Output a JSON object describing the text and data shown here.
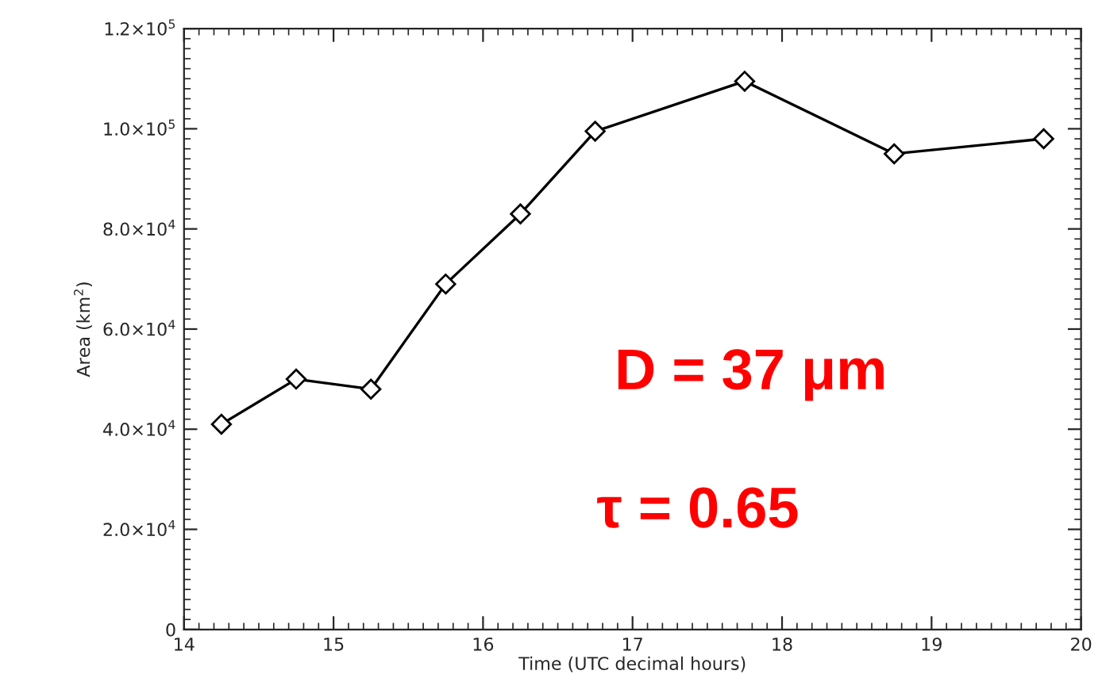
{
  "chart_data": {
    "type": "line",
    "xlabel": "Time (UTC decimal hours)",
    "ylabel": "Area (km$^{2}$)",
    "x": [
      14.25,
      14.75,
      15.25,
      15.75,
      16.25,
      16.75,
      17.75,
      18.75,
      19.75
    ],
    "series": [
      {
        "color": "#000000",
        "values": [
          41000,
          50000,
          48000,
          69000,
          83000,
          99500,
          109500,
          95000,
          98000
        ]
      }
    ],
    "marker": "diamond",
    "line_style": "solid",
    "grid": false,
    "legend": false,
    "xlim": [
      14,
      20
    ],
    "xticks": [
      14,
      15,
      16,
      17,
      18,
      19,
      20
    ],
    "ylim": [
      0,
      120000
    ],
    "yticks": [
      0,
      {
        "value": 20000,
        "label": "2.0×10$^{4}$"
      },
      {
        "value": 40000,
        "label": "4.0×10$^{4}$"
      },
      {
        "value": 60000,
        "label": "6.0×10$^{4}$"
      },
      {
        "value": 80000,
        "label": "8.0×10$^{4}$"
      },
      {
        "value": 100000,
        "label": "1.0×10$^{5}$"
      },
      {
        "value": 120000,
        "label": "1.2×10$^{5}$"
      }
    ],
    "annotations": [
      "D = 37 μm",
      "τ = 0.65"
    ]
  }
}
